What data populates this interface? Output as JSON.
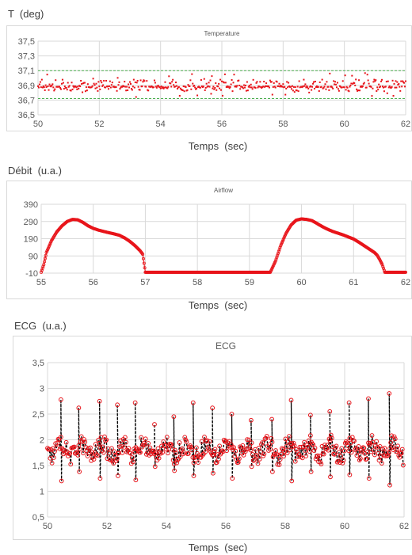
{
  "charts": {
    "temperature": {
      "unit_label": "T  (deg)",
      "title": "Temperature",
      "xlabel": "Temps  (sec)",
      "y_ticks": [
        "37,5",
        "37,3",
        "37,1",
        "36,9",
        "36,7",
        "36,5"
      ],
      "x_ticks": [
        "50",
        "52",
        "54",
        "56",
        "58",
        "60",
        "62"
      ]
    },
    "airflow": {
      "unit_label": "Débit  (u.a.)",
      "title": "Airflow",
      "xlabel": "Temps  (sec)",
      "y_ticks": [
        "390",
        "290",
        "190",
        "90",
        "-10"
      ],
      "x_ticks": [
        "55",
        "56",
        "57",
        "58",
        "59",
        "60",
        "61",
        "62"
      ]
    },
    "ecg": {
      "unit_label": "ECG  (u.a.)",
      "title": "ECG",
      "xlabel": "Temps  (sec)",
      "y_ticks": [
        "3,5",
        "3",
        "2,5",
        "2",
        "1,5",
        "1",
        "0,5"
      ],
      "x_ticks": [
        "50",
        "52",
        "54",
        "56",
        "58",
        "60",
        "62"
      ]
    }
  },
  "chart_data": [
    {
      "type": "scatter",
      "title": "Temperature",
      "xlabel": "Temps  (sec)",
      "ylabel": "T  (deg)",
      "xlim": [
        50,
        62
      ],
      "ylim": [
        36.5,
        37.5
      ],
      "reference_lines": [
        37.1,
        36.72
      ],
      "series": [
        {
          "x": [
            50.0,
            50.6,
            51.2,
            51.8,
            52.4,
            53.0,
            53.6,
            54.2,
            54.8,
            55.4,
            56.0,
            56.6,
            57.2,
            57.8,
            58.4,
            59.0,
            59.6,
            60.2,
            60.8,
            61.4,
            62.0
          ],
          "y": [
            36.88,
            36.92,
            36.85,
            36.9,
            36.88,
            36.93,
            36.87,
            36.9,
            36.86,
            36.91,
            36.89,
            36.88,
            36.92,
            36.87,
            36.9,
            36.88,
            36.91,
            36.86,
            36.9,
            36.89,
            36.92
          ]
        }
      ],
      "colors": {
        "points": "#e8141a",
        "reference": "#4caf50"
      }
    },
    {
      "type": "line",
      "title": "Airflow",
      "xlabel": "Temps  (sec)",
      "ylabel": "Débit  (u.a.)",
      "xlim": [
        55,
        62
      ],
      "ylim": [
        -10,
        390
      ],
      "series": [
        {
          "x": [
            55.0,
            55.05,
            55.1,
            55.2,
            55.3,
            55.4,
            55.5,
            55.6,
            55.7,
            55.8,
            55.9,
            56.0,
            56.1,
            56.2,
            56.3,
            56.4,
            56.5,
            56.6,
            56.7,
            56.8,
            56.85,
            56.9,
            56.95,
            57.0,
            57.1,
            57.5,
            58.0,
            58.5,
            59.0,
            59.3,
            59.4,
            59.5,
            59.6,
            59.7,
            59.8,
            59.9,
            60.0,
            60.1,
            60.2,
            60.3,
            60.4,
            60.5,
            60.6,
            60.7,
            60.8,
            60.9,
            61.0,
            61.1,
            61.2,
            61.3,
            61.4,
            61.45,
            61.5,
            61.55,
            61.6,
            61.7,
            61.8,
            61.9,
            62.0
          ],
          "y": [
            -5,
            40,
            110,
            180,
            230,
            265,
            290,
            302,
            300,
            285,
            265,
            250,
            240,
            232,
            225,
            218,
            210,
            195,
            175,
            150,
            135,
            120,
            100,
            -5,
            -5,
            -5,
            -5,
            -5,
            -5,
            -5,
            -5,
            60,
            150,
            220,
            270,
            298,
            305,
            302,
            295,
            278,
            260,
            245,
            232,
            222,
            212,
            200,
            188,
            170,
            150,
            130,
            110,
            95,
            70,
            40,
            -5,
            -5,
            -5,
            -5,
            -5
          ]
        }
      ],
      "colors": {
        "points": "#e8141a"
      }
    },
    {
      "type": "line",
      "title": "ECG",
      "xlabel": "Temps  (sec)",
      "ylabel": "ECG  (u.a.)",
      "xlim": [
        50,
        62
      ],
      "ylim": [
        0.5,
        3.5
      ],
      "spikes": [
        {
          "x": 50.45,
          "hi": 2.78,
          "lo": 1.2
        },
        {
          "x": 51.05,
          "hi": 2.62,
          "lo": 1.38
        },
        {
          "x": 51.75,
          "hi": 2.75,
          "lo": 1.25
        },
        {
          "x": 52.35,
          "hi": 2.68,
          "lo": 1.3
        },
        {
          "x": 52.95,
          "hi": 2.72,
          "lo": 1.22
        },
        {
          "x": 53.6,
          "hi": 2.3,
          "lo": 1.48
        },
        {
          "x": 54.25,
          "hi": 2.45,
          "lo": 1.4
        },
        {
          "x": 54.9,
          "hi": 2.72,
          "lo": 1.3
        },
        {
          "x": 55.55,
          "hi": 2.62,
          "lo": 1.35
        },
        {
          "x": 56.2,
          "hi": 2.5,
          "lo": 1.25
        },
        {
          "x": 56.85,
          "hi": 2.38,
          "lo": 1.48
        },
        {
          "x": 57.55,
          "hi": 2.4,
          "lo": 1.38
        },
        {
          "x": 58.2,
          "hi": 2.77,
          "lo": 1.2
        },
        {
          "x": 58.85,
          "hi": 2.48,
          "lo": 1.38
        },
        {
          "x": 59.5,
          "hi": 2.55,
          "lo": 1.28
        },
        {
          "x": 60.15,
          "hi": 2.72,
          "lo": 1.32
        },
        {
          "x": 60.8,
          "hi": 2.8,
          "lo": 1.25
        },
        {
          "x": 61.5,
          "hi": 2.9,
          "lo": 1.12
        }
      ],
      "baseline": 1.8,
      "colors": {
        "points": "#e8141a",
        "line": "#000000"
      }
    }
  ]
}
